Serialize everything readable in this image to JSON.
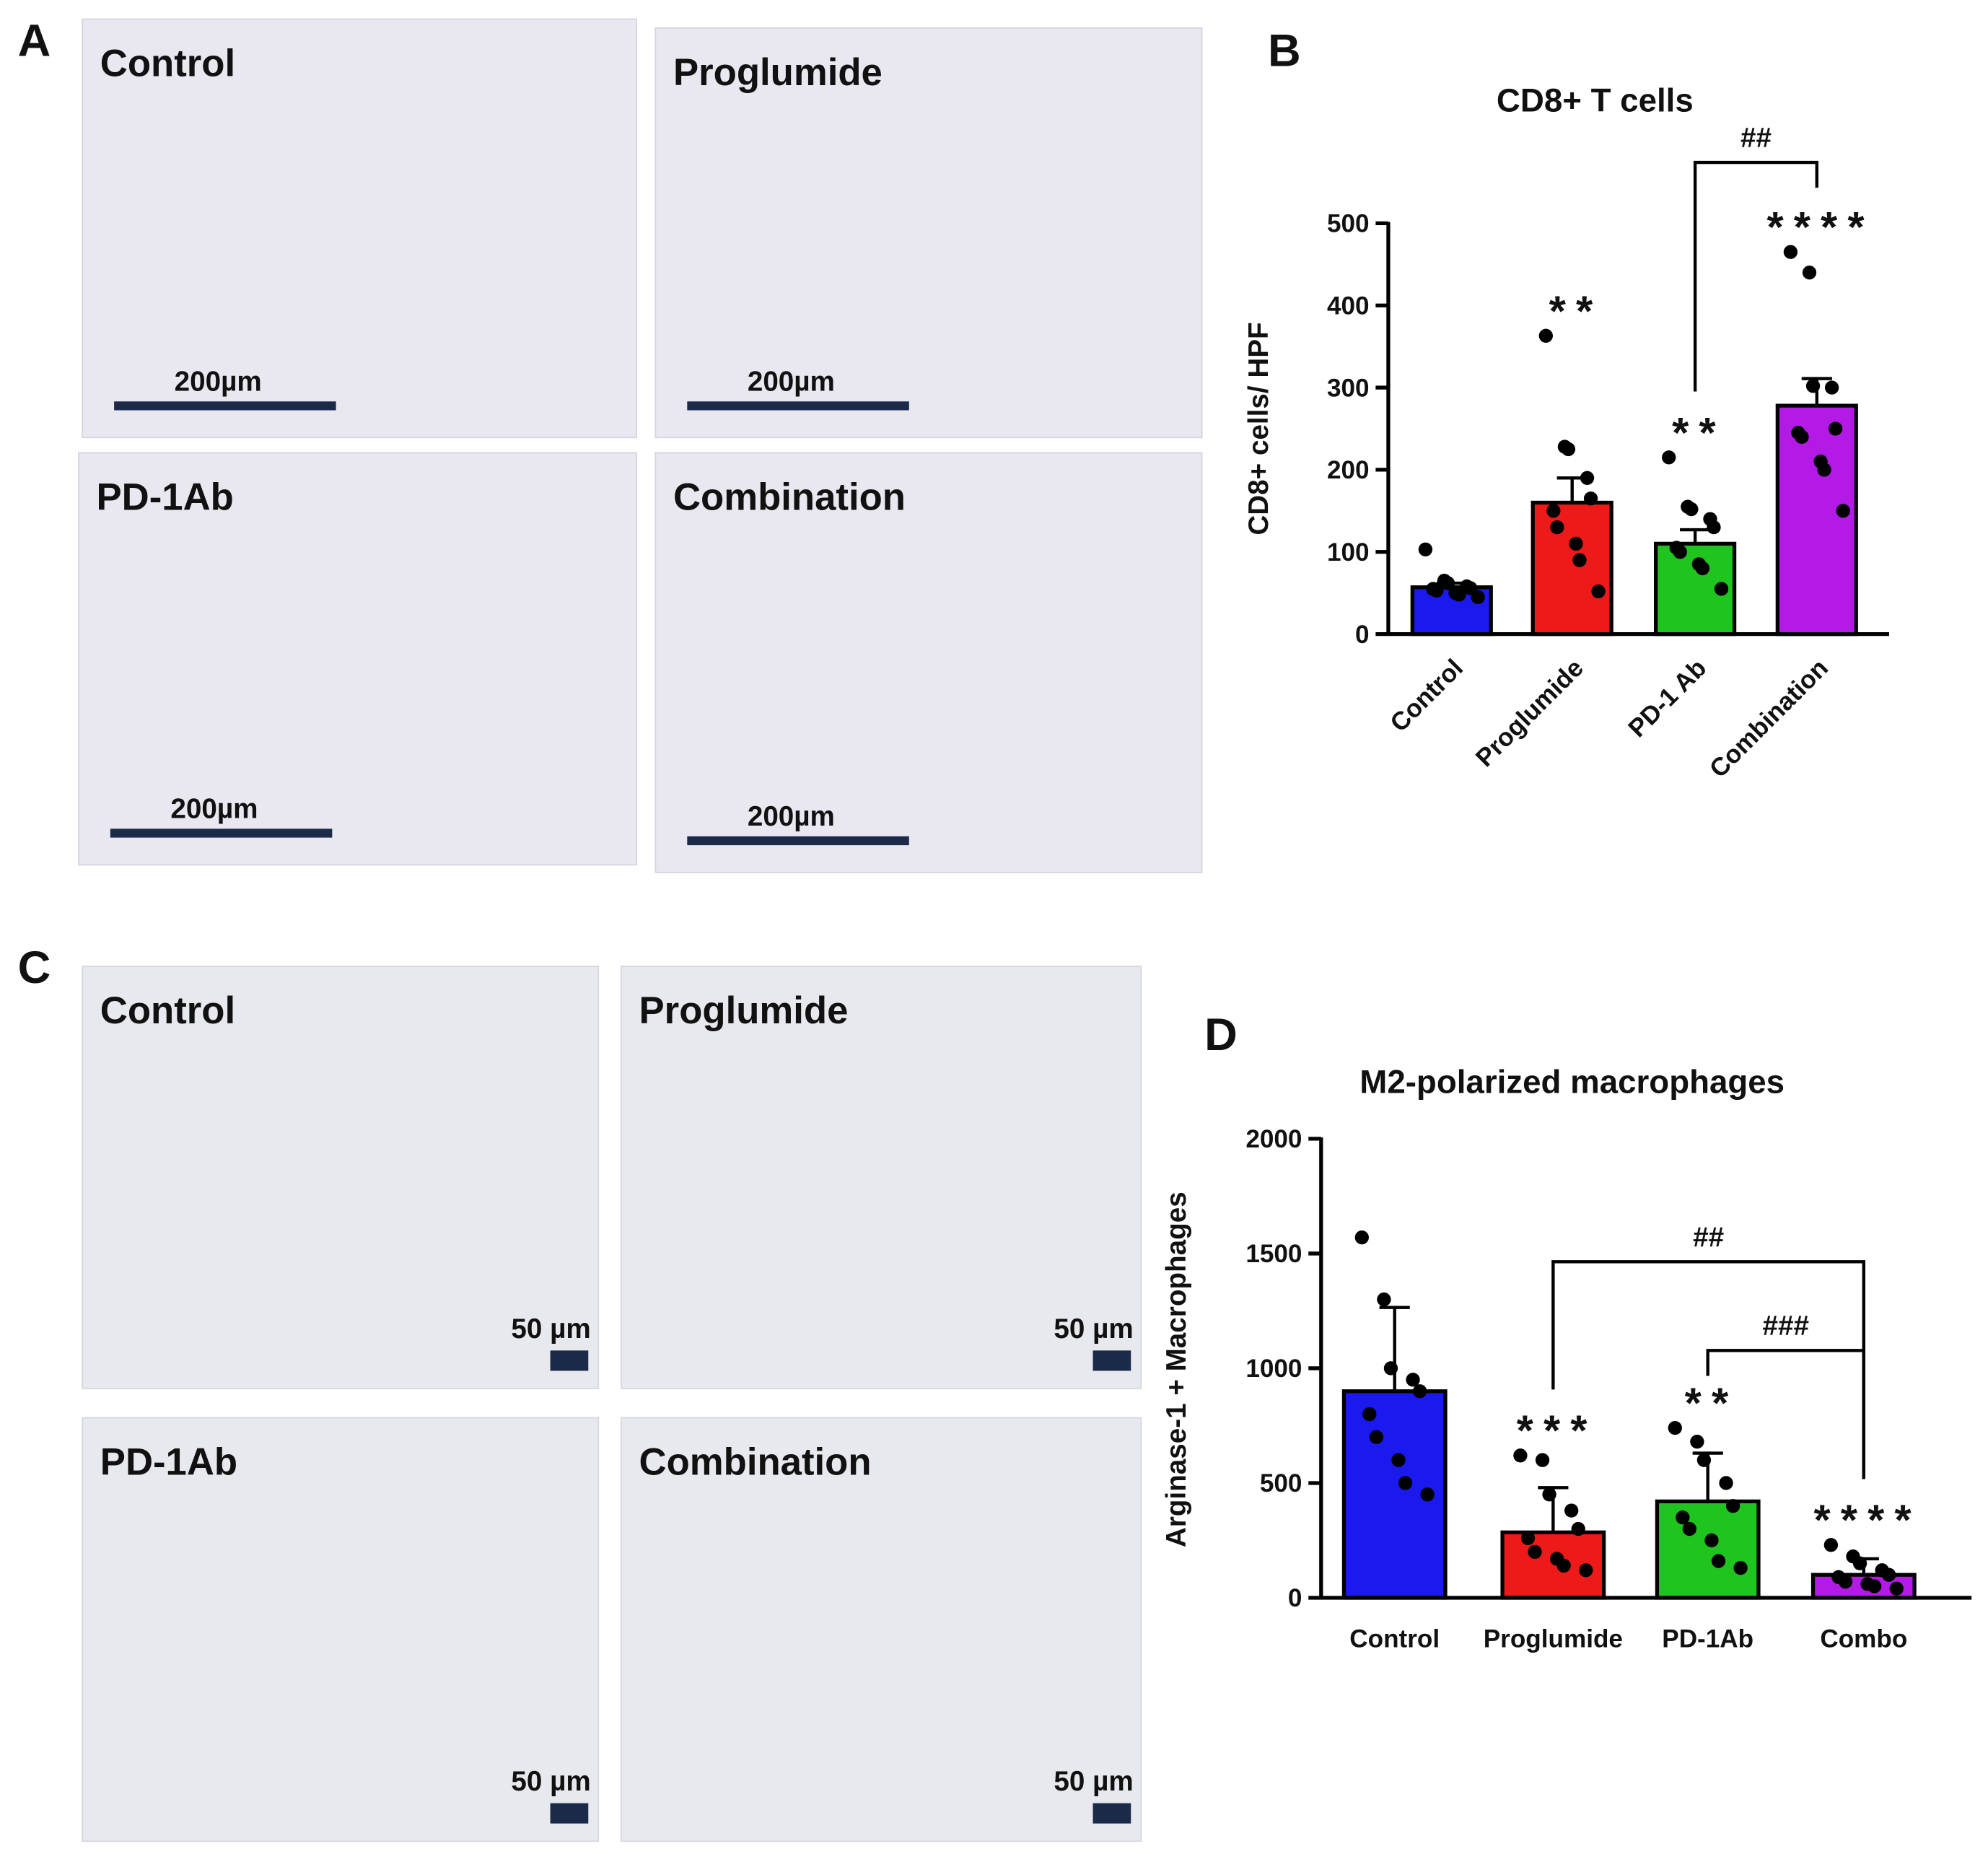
{
  "image_panels": [
    {
      "letter": "A",
      "tiles": [
        {
          "label": "Control",
          "scale_bar": "200µm"
        },
        {
          "label": "Proglumide",
          "scale_bar": "200µm"
        },
        {
          "label": "PD-1Ab",
          "scale_bar": "200µm"
        },
        {
          "label": "Combination",
          "scale_bar": "200µm"
        }
      ]
    },
    {
      "letter": "C",
      "tiles": [
        {
          "label": "Control",
          "scale_bar": "50 µm"
        },
        {
          "label": "Proglumide",
          "scale_bar": "50 µm"
        },
        {
          "label": "PD-1Ab",
          "scale_bar": "50 µm"
        },
        {
          "label": "Combination",
          "scale_bar": "50 µm"
        }
      ]
    }
  ],
  "chart_data": [
    {
      "letter": "B",
      "type": "bar",
      "title": "CD8+ T cells",
      "ylabel": "CD8+ cells/ HPF",
      "categories": [
        "Control",
        "Proglumide",
        "PD-1 Ab",
        "Combination"
      ],
      "colors": [
        "#1a1aee",
        "#ee1a1a",
        "#1fc41f",
        "#b41ae6"
      ],
      "values": [
        57,
        160,
        110,
        278
      ],
      "errors": [
        5,
        30,
        17,
        33
      ],
      "points": [
        [
          103,
          65,
          62,
          58,
          56,
          55,
          53,
          50,
          48,
          45
        ],
        [
          363,
          228,
          225,
          190,
          165,
          150,
          130,
          110,
          90,
          52
        ],
        [
          215,
          155,
          152,
          140,
          130,
          105,
          100,
          85,
          80,
          55
        ],
        [
          465,
          440,
          302,
          300,
          250,
          245,
          240,
          210,
          200,
          150
        ]
      ],
      "stars": [
        null,
        "**",
        "**",
        "****"
      ],
      "brackets": [
        {
          "from": "PD-1 Ab",
          "to": "Combination",
          "label": "##"
        }
      ],
      "ylim": [
        0,
        500
      ],
      "yticks": [
        0,
        100,
        200,
        300,
        400,
        500
      ],
      "rotated_labels": true
    },
    {
      "letter": "D",
      "type": "bar",
      "title": "M2-polarized macrophages",
      "ylabel": "Arginase-1 + Macrophages",
      "categories": [
        "Control",
        "Proglumide",
        "PD-1Ab",
        "Combo"
      ],
      "colors": [
        "#1a1aee",
        "#ee1a1a",
        "#1fc41f",
        "#b41ae6"
      ],
      "values": [
        900,
        285,
        420,
        100
      ],
      "errors": [
        365,
        195,
        210,
        70
      ],
      "points": [
        [
          1570,
          1300,
          1000,
          950,
          900,
          800,
          700,
          600,
          500,
          450
        ],
        [
          620,
          600,
          450,
          380,
          300,
          260,
          200,
          170,
          140,
          120
        ],
        [
          740,
          680,
          600,
          500,
          400,
          350,
          300,
          250,
          160,
          130
        ],
        [
          230,
          180,
          150,
          120,
          100,
          90,
          70,
          60,
          50,
          40
        ]
      ],
      "stars": [
        null,
        "***",
        "**",
        "****"
      ],
      "brackets": [
        {
          "from": "Proglumide",
          "to": "Combo",
          "label": "##"
        },
        {
          "from": "PD-1Ab",
          "to": "Combo",
          "label": "###"
        }
      ],
      "ylim": [
        0,
        2000
      ],
      "yticks": [
        0,
        500,
        1000,
        1500,
        2000
      ],
      "rotated_labels": false
    }
  ]
}
